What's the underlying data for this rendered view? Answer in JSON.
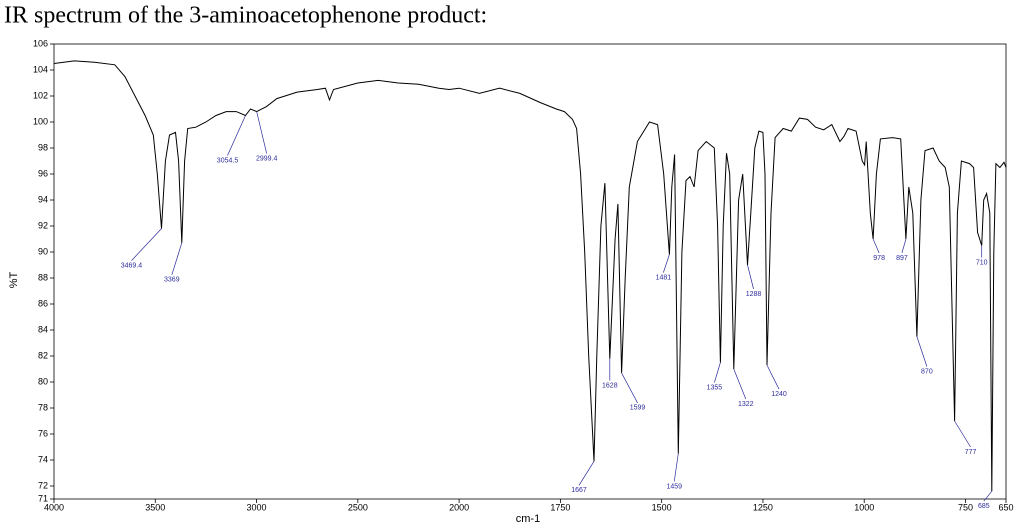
{
  "chart_data": {
    "type": "line",
    "title": "IR spectrum of the 3-aminoacetophenone product:",
    "x_label": "cm-1",
    "y_label": "%T",
    "xlim": [
      4000,
      650
    ],
    "ylim": [
      71,
      106
    ],
    "x_scale_change": {
      "at": 2000,
      "factor": 2
    },
    "xticks": [
      4000,
      3500,
      3000,
      2500,
      2000,
      1750,
      1500,
      1250,
      1000,
      750,
      650
    ],
    "yticks": [
      71,
      72,
      74,
      76,
      78,
      80,
      82,
      84,
      86,
      88,
      90,
      92,
      94,
      96,
      98,
      100,
      102,
      104,
      106
    ],
    "x": [
      4000,
      3900,
      3800,
      3700,
      3650,
      3600,
      3550,
      3510,
      3490,
      3469.4,
      3450,
      3430,
      3400,
      3385,
      3369,
      3355,
      3340,
      3300,
      3250,
      3200,
      3150,
      3100,
      3054.5,
      3030,
      2999.4,
      2950,
      2900,
      2800,
      2700,
      2660,
      2640,
      2620,
      2500,
      2400,
      2300,
      2200,
      2100,
      2050,
      2000,
      1950,
      1900,
      1850,
      1800,
      1760,
      1740,
      1720,
      1710,
      1700,
      1690,
      1680,
      1667,
      1660,
      1650,
      1640,
      1628,
      1615,
      1608,
      1599,
      1590,
      1580,
      1560,
      1530,
      1510,
      1495,
      1481,
      1475,
      1468,
      1459,
      1450,
      1440,
      1430,
      1420,
      1410,
      1390,
      1370,
      1362,
      1355,
      1348,
      1340,
      1332,
      1322,
      1310,
      1300,
      1288,
      1280,
      1270,
      1260,
      1250,
      1245,
      1240,
      1230,
      1220,
      1200,
      1180,
      1160,
      1140,
      1120,
      1100,
      1080,
      1060,
      1050,
      1040,
      1020,
      1005,
      999,
      995,
      985,
      978,
      970,
      960,
      930,
      910,
      897,
      890,
      880,
      870,
      860,
      850,
      830,
      815,
      800,
      790,
      777,
      770,
      760,
      740,
      730,
      720,
      710,
      705,
      698,
      690,
      685,
      680,
      675,
      665,
      655,
      650
    ],
    "series": [
      {
        "color": "#000000",
        "values": [
          104.5,
          104.7,
          104.6,
          104.4,
          103.5,
          102,
          100.5,
          99,
          96,
          91.8,
          97,
          99,
          99.2,
          97,
          90.7,
          97,
          99.5,
          99.6,
          100,
          100.5,
          100.8,
          100.8,
          100.5,
          101,
          100.8,
          101.2,
          101.8,
          102.3,
          102.5,
          102.6,
          101.7,
          102.5,
          103,
          103.2,
          103,
          102.9,
          102.6,
          102.5,
          102.6,
          102.2,
          102.6,
          102.2,
          101.5,
          101,
          100.8,
          100.2,
          99.5,
          96,
          90,
          82,
          73.9,
          82,
          92,
          95.3,
          81.8,
          91,
          93.7,
          80.7,
          88,
          95,
          98.5,
          100,
          99.8,
          96,
          89.8,
          95,
          97.5,
          74.5,
          90,
          95.5,
          95.8,
          95,
          97.8,
          98.5,
          98,
          92,
          81.5,
          92,
          97.6,
          96,
          81,
          94,
          96,
          89,
          93,
          98,
          99.3,
          99.2,
          96,
          81.3,
          93,
          98.8,
          99.5,
          99.3,
          100.3,
          100.2,
          99.6,
          99.4,
          99.8,
          98.5,
          98.9,
          99.5,
          99.3,
          97,
          96.7,
          98.5,
          93,
          91,
          96,
          98.7,
          98.8,
          98.7,
          91,
          95,
          93,
          83.5,
          94,
          97.8,
          98,
          97,
          96.5,
          95,
          77,
          93,
          97,
          96.8,
          96.5,
          91.5,
          90.5,
          94,
          94.5,
          93,
          71.6,
          90,
          96.8,
          96.5,
          96.9,
          96.5
        ]
      }
    ],
    "annotations": [
      {
        "text": "3469.4",
        "x": 3469.4,
        "y": 91.8
      },
      {
        "text": "3369",
        "x": 3369,
        "y": 90.7
      },
      {
        "text": "3054.5",
        "x": 3054.5,
        "y": 100.5
      },
      {
        "text": "2999.4",
        "x": 2999.4,
        "y": 100.8
      },
      {
        "text": "1667",
        "x": 1667,
        "y": 73.9
      },
      {
        "text": "1628",
        "x": 1628,
        "y": 81.8
      },
      {
        "text": "1599",
        "x": 1599,
        "y": 80.7
      },
      {
        "text": "1481",
        "x": 1481,
        "y": 89.8
      },
      {
        "text": "1459",
        "x": 1459,
        "y": 74.5
      },
      {
        "text": "1355",
        "x": 1355,
        "y": 81.5
      },
      {
        "text": "1322",
        "x": 1322,
        "y": 81
      },
      {
        "text": "1288",
        "x": 1288,
        "y": 89
      },
      {
        "text": "1240",
        "x": 1240,
        "y": 81.3
      },
      {
        "text": "978",
        "x": 978,
        "y": 91
      },
      {
        "text": "897",
        "x": 897,
        "y": 91
      },
      {
        "text": "870",
        "x": 870,
        "y": 83.5
      },
      {
        "text": "777",
        "x": 777,
        "y": 77
      },
      {
        "text": "710",
        "x": 710,
        "y": 90.5
      },
      {
        "text": "685",
        "x": 685,
        "y": 71.6
      }
    ]
  }
}
